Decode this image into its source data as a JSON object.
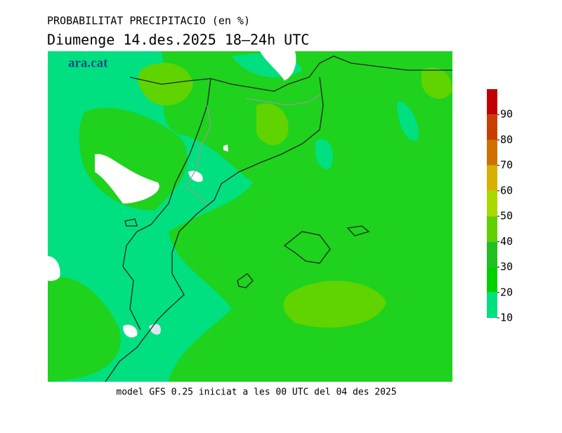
{
  "title": "PROBABILITAT PRECIPITACIO (en %)",
  "subtitle": "Diumenge  14.des.2025 18–24h UTC",
  "logo": "ara.cat",
  "footer": "model GFS 0.25 iniciat a les 00 UTC del 04 des 2025",
  "colorbar": {
    "range": [
      10,
      100
    ],
    "ticks": [
      10,
      20,
      30,
      40,
      50,
      60,
      70,
      80,
      90
    ],
    "colors": [
      "#00e080",
      "#00d000",
      "#20c020",
      "#60d000",
      "#a8d800",
      "#d8b000",
      "#d07000",
      "#c84000",
      "#c00000"
    ]
  }
}
